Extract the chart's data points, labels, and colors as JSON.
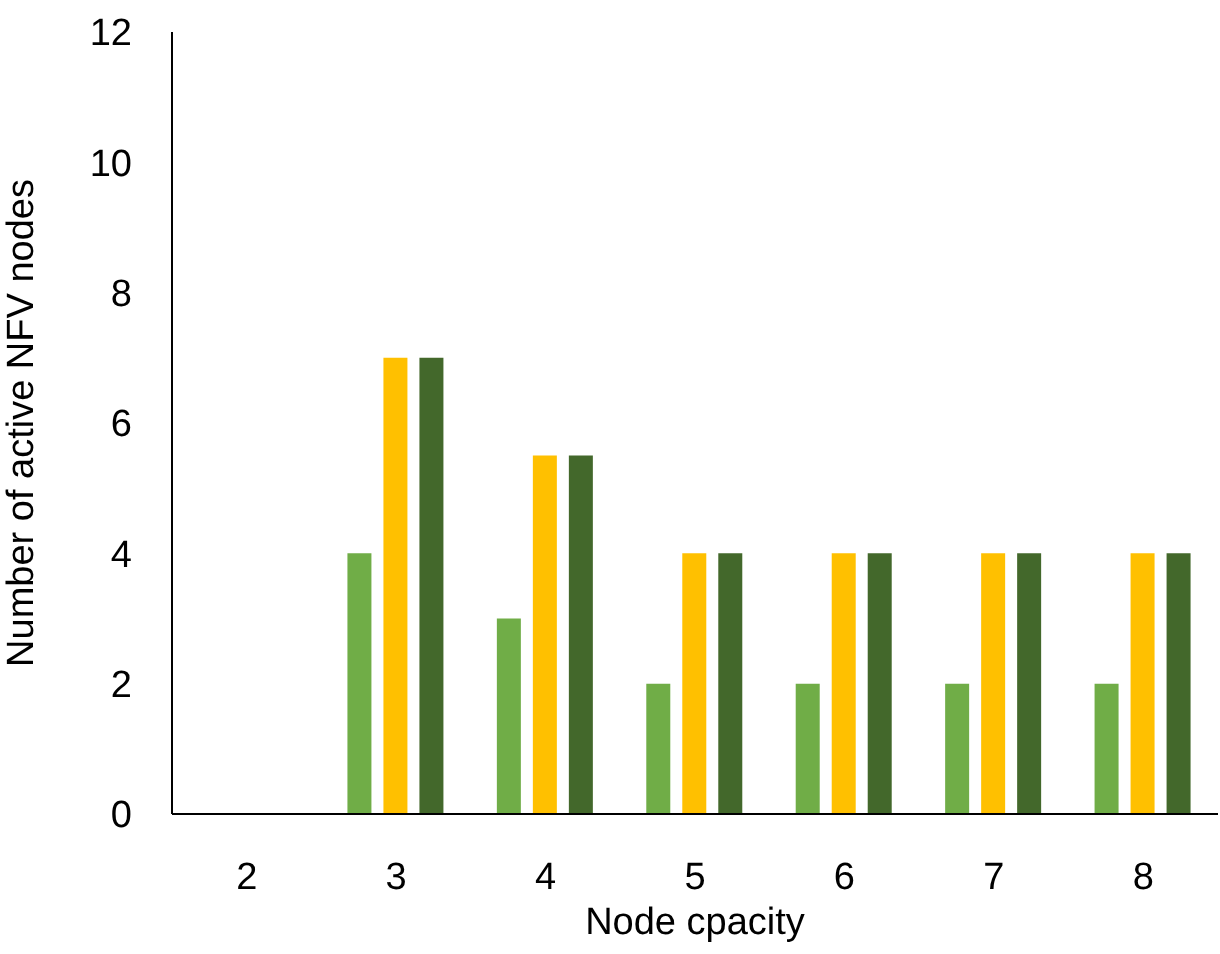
{
  "chart_data": {
    "type": "bar",
    "xlabel": "Node cpacity",
    "ylabel": "Number of active NFV nodes",
    "categories": [
      "2",
      "3",
      "4",
      "5",
      "6",
      "7",
      "8"
    ],
    "series": [
      {
        "color": "#70ad47",
        "values": [
          0,
          4,
          3,
          2,
          2,
          2,
          2
        ]
      },
      {
        "color": "#ffc000",
        "values": [
          0,
          7,
          5.5,
          4,
          4,
          4,
          4
        ]
      },
      {
        "color": "#43682b",
        "values": [
          0,
          7,
          5.5,
          4,
          4,
          4,
          4
        ]
      }
    ],
    "ylim": [
      0,
      12
    ],
    "yticks": [
      0,
      2,
      4,
      6,
      8,
      10,
      12
    ],
    "grid": false,
    "legend": false
  }
}
